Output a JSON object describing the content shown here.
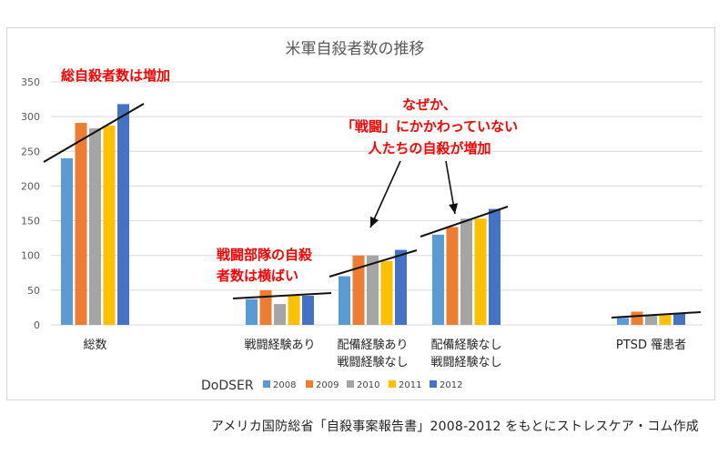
{
  "chart_data": {
    "type": "bar",
    "title": "米軍自殺者数の推移",
    "xlabel": "",
    "ylabel": "",
    "ylim": [
      0,
      350
    ],
    "yticks": [
      0,
      50,
      100,
      150,
      200,
      250,
      300,
      350
    ],
    "grid": true,
    "legend_position": "bottom",
    "categories": [
      "総数",
      "戦闘経験あり",
      "配備経験あり\n戦闘経験なし",
      "配備経験なし\n戦闘経験なし",
      "PTSD 罹患者"
    ],
    "series": [
      {
        "name": "2008",
        "color": "#5b9bd5",
        "values": [
          240,
          37,
          70,
          130,
          10
        ]
      },
      {
        "name": "2009",
        "color": "#ed7d31",
        "values": [
          291,
          50,
          100,
          141,
          19
        ]
      },
      {
        "name": "2010",
        "color": "#a5a5a5",
        "values": [
          283,
          30,
          100,
          153,
          15
        ]
      },
      {
        "name": "2011",
        "color": "#ffc000",
        "values": [
          287,
          42,
          92,
          153,
          16
        ]
      },
      {
        "name": "2012",
        "color": "#4472c4",
        "values": [
          318,
          42,
          108,
          167,
          17
        ]
      }
    ],
    "legend_title": "DoDSER",
    "annotations": [
      {
        "text": "総自殺者数は増加",
        "color": "#ff0000"
      },
      {
        "text": "なぜか、\n「戦闘」にかかわっていない\n人たちの自殺が増加",
        "color": "#ff0000"
      },
      {
        "text": "戦闘部隊の自殺\n者数は横ばい",
        "color": "#ff0000"
      }
    ]
  },
  "source_note": "アメリカ国防総省「自殺事案報告書」2008-2012 をもとにストレスケア・コム作成"
}
